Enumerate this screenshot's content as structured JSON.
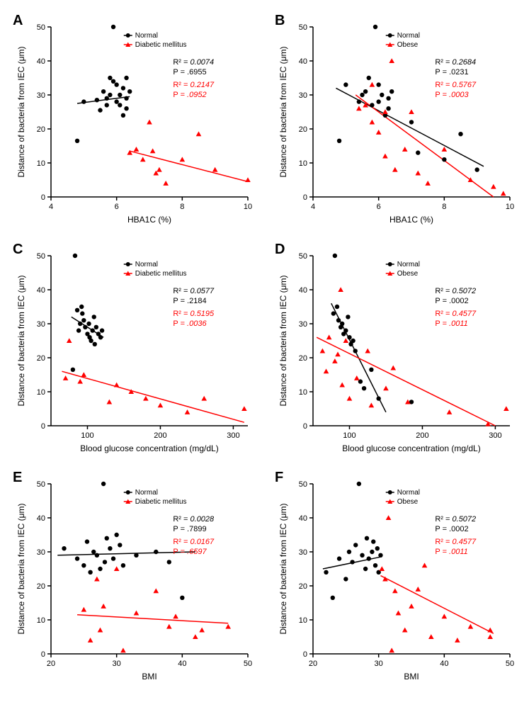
{
  "colors": {
    "normal": "#000000",
    "group": "#ff0000",
    "axis": "#000000",
    "background": "#ffffff"
  },
  "typography": {
    "panel_label_fontsize": 20,
    "panel_label_weight": "bold",
    "axis_label_fontsize": 12,
    "tick_fontsize": 11,
    "legend_fontsize": 10,
    "stats_fontsize": 11
  },
  "panels": {
    "A": {
      "label": "A",
      "xlabel": "HBA1C (%)",
      "ylabel": "Distance of bacteria from IEC (μm)",
      "xlim": [
        4,
        10
      ],
      "xticks": [
        4,
        6,
        8,
        10
      ],
      "ylim": [
        0,
        50
      ],
      "yticks": [
        0,
        10,
        20,
        30,
        40,
        50
      ],
      "legend": {
        "group1": "Normal",
        "group2": "Diabetic mellitus"
      },
      "group2_marker": "triangle",
      "stats": {
        "normal": {
          "r2_label": "R²",
          "r2": "0.0074",
          "p_label": "P",
          "p": ".6955"
        },
        "group": {
          "r2_label": "R²",
          "r2": "0.2147",
          "p_label": "P",
          "p": ".0952"
        }
      },
      "normal_points": [
        [
          4.8,
          16.5
        ],
        [
          5.0,
          28
        ],
        [
          5.4,
          28.5
        ],
        [
          5.5,
          25.5
        ],
        [
          5.6,
          31
        ],
        [
          5.7,
          27
        ],
        [
          5.8,
          35
        ],
        [
          5.8,
          30
        ],
        [
          5.9,
          50
        ],
        [
          6.0,
          28
        ],
        [
          6.0,
          33
        ],
        [
          6.1,
          30
        ],
        [
          6.1,
          27
        ],
        [
          6.2,
          32
        ],
        [
          6.2,
          24
        ],
        [
          6.3,
          29
        ],
        [
          6.3,
          26
        ],
        [
          6.3,
          35
        ],
        [
          6.4,
          31
        ],
        [
          5.9,
          34
        ],
        [
          5.7,
          29
        ]
      ],
      "group_points": [
        [
          6.4,
          13
        ],
        [
          6.6,
          14
        ],
        [
          6.8,
          11
        ],
        [
          7.0,
          22
        ],
        [
          7.1,
          13.5
        ],
        [
          7.2,
          7
        ],
        [
          7.3,
          8
        ],
        [
          7.5,
          4
        ],
        [
          8.0,
          11
        ],
        [
          8.5,
          18.5
        ],
        [
          9.0,
          8
        ],
        [
          10.0,
          5
        ]
      ],
      "normal_line": {
        "x1": 4.8,
        "y1": 27.5,
        "x2": 6.4,
        "y2": 29.5
      },
      "group_line": {
        "x1": 6.4,
        "y1": 13.5,
        "x2": 10.0,
        "y2": 4.5
      }
    },
    "B": {
      "label": "B",
      "xlabel": "HBA1C (%)",
      "ylabel": "Distance of bacteria from IEC (μm)",
      "xlim": [
        4,
        10
      ],
      "xticks": [
        4,
        6,
        8,
        10
      ],
      "ylim": [
        0,
        50
      ],
      "yticks": [
        0,
        10,
        20,
        30,
        40,
        50
      ],
      "legend": {
        "group1": "Normal",
        "group2": "Obese"
      },
      "group2_marker": "triangle",
      "stats": {
        "normal": {
          "r2_label": "R²",
          "r2": "0.2684",
          "p_label": "P",
          "p": ".0231"
        },
        "group": {
          "r2_label": "R²",
          "r2": "0.5767",
          "p_label": "P",
          "p": ".0003"
        }
      },
      "normal_points": [
        [
          4.8,
          16.5
        ],
        [
          5.0,
          33
        ],
        [
          5.4,
          28
        ],
        [
          5.5,
          30
        ],
        [
          5.6,
          31
        ],
        [
          5.7,
          35
        ],
        [
          5.8,
          27
        ],
        [
          5.9,
          50
        ],
        [
          6.0,
          28
        ],
        [
          6.0,
          33
        ],
        [
          6.1,
          30
        ],
        [
          6.2,
          24
        ],
        [
          6.3,
          29
        ],
        [
          6.3,
          26
        ],
        [
          6.4,
          31
        ],
        [
          7.0,
          22
        ],
        [
          7.2,
          13
        ],
        [
          8.0,
          11
        ],
        [
          8.5,
          18.5
        ],
        [
          9.0,
          8
        ]
      ],
      "group_points": [
        [
          5.4,
          26
        ],
        [
          5.6,
          27
        ],
        [
          5.8,
          33
        ],
        [
          5.8,
          22
        ],
        [
          6.0,
          19
        ],
        [
          6.2,
          25
        ],
        [
          6.2,
          12
        ],
        [
          6.4,
          40
        ],
        [
          6.5,
          8
        ],
        [
          6.8,
          14
        ],
        [
          7.0,
          25
        ],
        [
          7.2,
          7
        ],
        [
          7.5,
          4
        ],
        [
          8.0,
          14
        ],
        [
          8.8,
          5
        ],
        [
          9.5,
          3
        ],
        [
          9.8,
          1
        ]
      ],
      "normal_line": {
        "x1": 4.7,
        "y1": 32,
        "x2": 9.2,
        "y2": 9
      },
      "group_line": {
        "x1": 5.3,
        "y1": 30,
        "x2": 9.5,
        "y2": 0
      }
    },
    "C": {
      "label": "C",
      "xlabel": "Blood glucose concentration (mg/dL)",
      "ylabel": "Distance of bacteria from IEC (μm)",
      "xlim": [
        50,
        320
      ],
      "xticks": [
        100,
        200,
        300
      ],
      "ylim": [
        0,
        50
      ],
      "yticks": [
        0,
        10,
        20,
        30,
        40,
        50
      ],
      "legend": {
        "group1": "Normal",
        "group2": "Diabetic mellitus"
      },
      "group2_marker": "triangle",
      "stats": {
        "normal": {
          "r2_label": "R²",
          "r2": "0.0577",
          "p_label": "P",
          "p": ".2184"
        },
        "group": {
          "r2_label": "R²",
          "r2": "0.5195",
          "p_label": "P",
          "p": ".0036"
        }
      },
      "normal_points": [
        [
          80,
          16.5
        ],
        [
          83,
          50
        ],
        [
          86,
          34
        ],
        [
          88,
          28
        ],
        [
          90,
          30
        ],
        [
          92,
          35
        ],
        [
          93,
          33
        ],
        [
          95,
          31
        ],
        [
          97,
          29
        ],
        [
          100,
          27
        ],
        [
          102,
          30
        ],
        [
          103,
          26
        ],
        [
          105,
          25
        ],
        [
          107,
          28
        ],
        [
          109,
          32
        ],
        [
          110,
          24
        ],
        [
          112,
          29
        ],
        [
          115,
          27
        ],
        [
          118,
          26
        ],
        [
          120,
          28
        ]
      ],
      "group_points": [
        [
          70,
          14
        ],
        [
          75,
          25
        ],
        [
          90,
          13
        ],
        [
          95,
          15
        ],
        [
          130,
          7
        ],
        [
          140,
          12
        ],
        [
          160,
          10
        ],
        [
          180,
          8
        ],
        [
          200,
          6
        ],
        [
          237,
          4
        ],
        [
          260,
          8
        ],
        [
          315,
          5
        ]
      ],
      "normal_line": {
        "x1": 78,
        "y1": 32,
        "x2": 122,
        "y2": 26
      },
      "group_line": {
        "x1": 65,
        "y1": 16,
        "x2": 315,
        "y2": 1
      }
    },
    "D": {
      "label": "D",
      "xlabel": "Blood glucose concentration (mg/dL)",
      "ylabel": "Distance of bacteria from IEC (μm)",
      "xlim": [
        50,
        320
      ],
      "xticks": [
        100,
        200,
        300
      ],
      "ylim": [
        0,
        50
      ],
      "yticks": [
        0,
        10,
        20,
        30,
        40,
        50
      ],
      "legend": {
        "group1": "Normal",
        "group2": "Obese"
      },
      "group2_marker": "triangle",
      "stats": {
        "normal": {
          "r2_label": "R²",
          "r2": "0.5072",
          "p_label": "P",
          "p": ".0002"
        },
        "group": {
          "r2_label": "R²",
          "r2": "0.4577",
          "p_label": "P",
          "p": ".0011"
        }
      },
      "normal_points": [
        [
          78,
          33
        ],
        [
          80,
          50
        ],
        [
          83,
          35
        ],
        [
          85,
          31
        ],
        [
          88,
          29
        ],
        [
          90,
          30
        ],
        [
          92,
          27
        ],
        [
          95,
          28
        ],
        [
          98,
          32
        ],
        [
          100,
          26
        ],
        [
          102,
          24
        ],
        [
          105,
          25
        ],
        [
          108,
          22
        ],
        [
          115,
          13
        ],
        [
          120,
          11
        ],
        [
          130,
          16.5
        ],
        [
          140,
          8
        ],
        [
          185,
          7
        ]
      ],
      "group_points": [
        [
          63,
          22
        ],
        [
          68,
          16
        ],
        [
          72,
          26
        ],
        [
          80,
          19
        ],
        [
          84,
          21
        ],
        [
          88,
          40
        ],
        [
          90,
          12
        ],
        [
          95,
          25
        ],
        [
          100,
          8
        ],
        [
          110,
          14
        ],
        [
          125,
          22
        ],
        [
          130,
          6
        ],
        [
          150,
          11
        ],
        [
          160,
          17
        ],
        [
          180,
          7
        ],
        [
          237,
          4
        ],
        [
          290,
          0.5
        ],
        [
          315,
          5
        ]
      ],
      "normal_line": {
        "x1": 75,
        "y1": 36,
        "x2": 150,
        "y2": 4
      },
      "group_line": {
        "x1": 55,
        "y1": 26,
        "x2": 300,
        "y2": 0
      }
    },
    "E": {
      "label": "E",
      "xlabel": "BMI",
      "ylabel": "Distance of bacteria from IEC (μm)",
      "xlim": [
        20,
        50
      ],
      "xticks": [
        20,
        30,
        40,
        50
      ],
      "ylim": [
        0,
        50
      ],
      "yticks": [
        0,
        10,
        20,
        30,
        40,
        50
      ],
      "legend": {
        "group1": "Normal",
        "group2": "Diabetic mellitus"
      },
      "group2_marker": "triangle",
      "stats": {
        "normal": {
          "r2_label": "R²",
          "r2": "0.0028",
          "p_label": "P",
          "p": ".7899"
        },
        "group": {
          "r2_label": "R²",
          "r2": "0.0167",
          "p_label": "P",
          "p": ".6597"
        }
      },
      "normal_points": [
        [
          22,
          31
        ],
        [
          24,
          28
        ],
        [
          25,
          26
        ],
        [
          25.5,
          33
        ],
        [
          26,
          24
        ],
        [
          26.5,
          30
        ],
        [
          27,
          29
        ],
        [
          27.5,
          25
        ],
        [
          28,
          50
        ],
        [
          28.2,
          27
        ],
        [
          28.5,
          34
        ],
        [
          29,
          31
        ],
        [
          29.5,
          28
        ],
        [
          30,
          35
        ],
        [
          30.5,
          32
        ],
        [
          31,
          26
        ],
        [
          33,
          29
        ],
        [
          36,
          30
        ],
        [
          38,
          27
        ],
        [
          40,
          16.5
        ]
      ],
      "group_points": [
        [
          25,
          13
        ],
        [
          26,
          4
        ],
        [
          27,
          22
        ],
        [
          27.5,
          7
        ],
        [
          28,
          14
        ],
        [
          30,
          25
        ],
        [
          31,
          1
        ],
        [
          33,
          12
        ],
        [
          36,
          18.5
        ],
        [
          38,
          8
        ],
        [
          39,
          11
        ],
        [
          42,
          5
        ],
        [
          43,
          7
        ],
        [
          47,
          8
        ]
      ],
      "normal_line": {
        "x1": 21,
        "y1": 29,
        "x2": 42,
        "y2": 30
      },
      "group_line": {
        "x1": 24,
        "y1": 11.5,
        "x2": 47,
        "y2": 9
      }
    },
    "F": {
      "label": "F",
      "xlabel": "BMI",
      "ylabel": "Distance of bacteria from IEC (μm)",
      "xlim": [
        20,
        50
      ],
      "xticks": [
        20,
        30,
        40,
        50
      ],
      "ylim": [
        0,
        50
      ],
      "yticks": [
        0,
        10,
        20,
        30,
        40,
        50
      ],
      "legend": {
        "group1": "Normal",
        "group2": "Obese"
      },
      "group2_marker": "triangle",
      "stats": {
        "normal": {
          "r2_label": "R²",
          "r2": "0.5072",
          "p_label": "P",
          "p": ".0002"
        },
        "group": {
          "r2_label": "R²",
          "r2": "0.4577",
          "p_label": "P",
          "p": ".0011"
        }
      },
      "normal_points": [
        [
          22,
          24
        ],
        [
          23,
          16.5
        ],
        [
          24,
          28
        ],
        [
          25,
          22
        ],
        [
          25.5,
          30
        ],
        [
          26,
          27
        ],
        [
          26.5,
          32
        ],
        [
          27,
          50
        ],
        [
          27.5,
          29
        ],
        [
          28,
          25
        ],
        [
          28.2,
          34
        ],
        [
          28.5,
          28
        ],
        [
          29,
          30
        ],
        [
          29.2,
          33
        ],
        [
          29.5,
          26
        ],
        [
          29.8,
          31
        ],
        [
          30,
          24
        ],
        [
          30.3,
          29
        ]
      ],
      "group_points": [
        [
          30.5,
          25
        ],
        [
          31,
          22
        ],
        [
          31.5,
          40
        ],
        [
          32,
          1
        ],
        [
          32.5,
          18.5
        ],
        [
          33,
          12
        ],
        [
          34,
          7
        ],
        [
          35,
          14
        ],
        [
          36,
          19
        ],
        [
          37,
          26
        ],
        [
          38,
          5
        ],
        [
          40,
          11
        ],
        [
          42,
          4
        ],
        [
          44,
          8
        ],
        [
          47,
          5
        ],
        [
          47,
          7
        ]
      ],
      "normal_line": {
        "x1": 21.5,
        "y1": 25,
        "x2": 30.3,
        "y2": 28.5
      },
      "group_line": {
        "x1": 30.3,
        "y1": 23,
        "x2": 47.5,
        "y2": 6
      }
    }
  }
}
